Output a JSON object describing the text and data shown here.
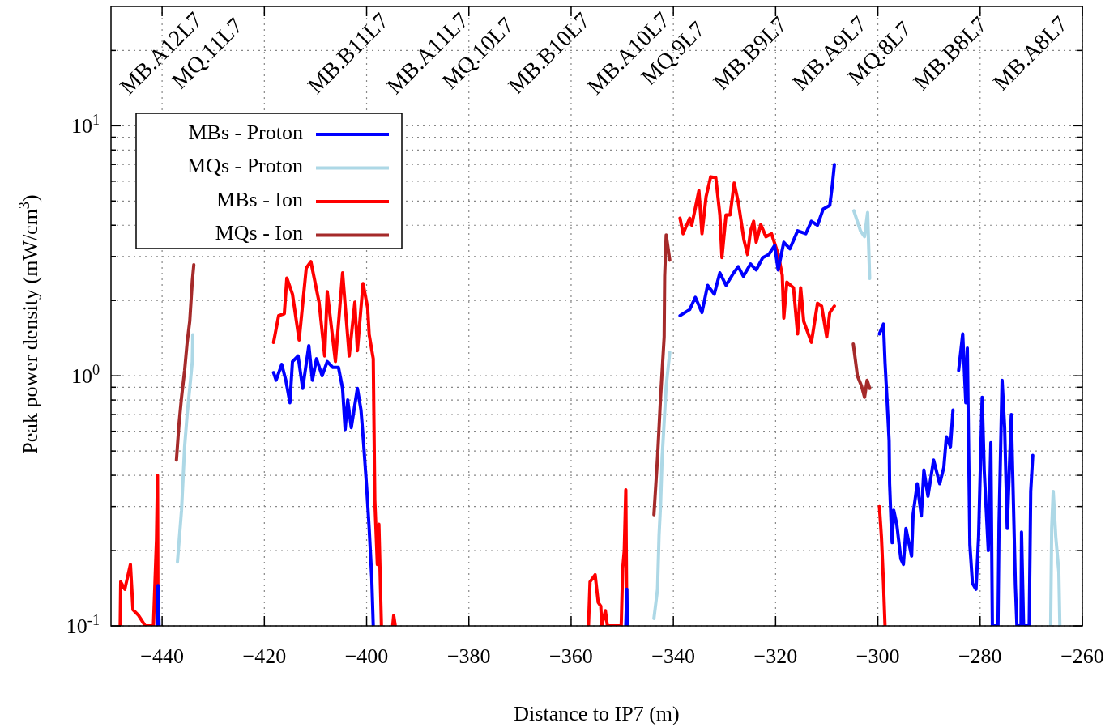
{
  "chart_data": {
    "type": "line",
    "xlabel": "Distance to IP7 (m)",
    "ylabel": "Peak power density (mW/cm$^{3}$)",
    "log": "y",
    "grid": true,
    "legend": "top left",
    "xlim": [
      -450,
      -260
    ],
    "xticks": [
      -440,
      -420,
      -400,
      -380,
      -360,
      -340,
      -320,
      -300,
      -280,
      -260
    ],
    "ylim": [
      0.1,
      30
    ],
    "yticks": [
      {
        "value": 0.1,
        "label": "10$^{-1}$"
      },
      {
        "value": 0.2,
        "label": null
      },
      {
        "value": 0.3,
        "label": null
      },
      {
        "value": 0.4,
        "label": null
      },
      {
        "value": 0.5,
        "label": null
      },
      {
        "value": 0.6,
        "label": null
      },
      {
        "value": 0.7,
        "label": null
      },
      {
        "value": 0.8,
        "label": null
      },
      {
        "value": 0.9,
        "label": null
      },
      {
        "value": 1,
        "label": "10$^{0}$"
      },
      {
        "value": 2,
        "label": null
      },
      {
        "value": 3,
        "label": null
      },
      {
        "value": 4,
        "label": null
      },
      {
        "value": 5,
        "label": null
      },
      {
        "value": 6,
        "label": null
      },
      {
        "value": 7,
        "label": null
      },
      {
        "value": 8,
        "label": null
      },
      {
        "value": 9,
        "label": null
      },
      {
        "value": 10,
        "label": "10$^{1}$"
      },
      {
        "value": 20,
        "label": null
      }
    ],
    "annotations": [
      "MB.A12L7",
      "MQ.11L7",
      "MB.B11L7",
      "MB.A11L7",
      "MQ.10L7",
      "MB.B10L7",
      "MB.A10L7",
      "MQ.9L7",
      "MB.B9L7",
      "MB.A9L7",
      "MQ.8L7",
      "MB.B8L7",
      "MB.A8L7"
    ],
    "series": [
      {
        "name": "MBs - Proton",
        "color": "#0000ff",
        "x": [
          -440.9,
          -440.8,
          -440.6,
          -430,
          -418.2,
          -417.7,
          -416.6,
          -415.8,
          -415.0,
          -414.5,
          -413.4,
          -412.5,
          -411.3,
          -410.6,
          -409.8,
          -408.7,
          -407.7,
          -406.6,
          -405.5,
          -404.7,
          -404.2,
          -403.7,
          -403.0,
          -401.8,
          -401.1,
          -400.6,
          -400.0,
          -399.5,
          -399.0,
          -398.7,
          -380,
          -349.3,
          -349.1,
          -349.0,
          -345,
          -338.7,
          -336.8,
          -335.7,
          -334.4,
          -333.3,
          -332.0,
          -330.9,
          -329.7,
          -328.2,
          -327.3,
          -326.3,
          -324.9,
          -323.8,
          -322.5,
          -321.3,
          -320.2,
          -319.5,
          -318.4,
          -317.2,
          -315.7,
          -314.1,
          -313.0,
          -311.8,
          -310.7,
          -309.4,
          -308.9,
          -308.5,
          -305,
          -299.7,
          -298.9,
          -298.6,
          -298.2,
          -297.8,
          -297.7,
          -297.4,
          -297.2,
          -296.9,
          -296.3,
          -295.5,
          -295.0,
          -294.5,
          -293.4,
          -293.1,
          -292.3,
          -291.5,
          -291.0,
          -290.2,
          -289.1,
          -287.9,
          -287.1,
          -286.6,
          -285.8,
          -285.3,
          -284.8,
          -284.2,
          -283.4,
          -282.8,
          -282.5,
          -282.0,
          -281.5,
          -280.8,
          -280.3,
          -279.6,
          -279.2,
          -278.4,
          -277.9,
          -277.6,
          -276.5,
          -276.3,
          -275.7,
          -275.2,
          -274.7,
          -273.9,
          -273.1,
          -272.8,
          -272.0,
          -271.9,
          -271.5,
          -270.4,
          -270.1,
          -269.7
        ],
        "values": [
          0.1,
          0.145,
          0.1,
          null,
          1.03,
          0.96,
          1.11,
          0.96,
          0.78,
          1.14,
          1.2,
          0.89,
          1.32,
          0.96,
          1.17,
          1.0,
          1.14,
          1.08,
          1.08,
          0.89,
          0.61,
          0.8,
          0.62,
          0.89,
          0.73,
          0.54,
          0.36,
          0.245,
          0.156,
          0.1,
          null,
          0.1,
          0.14,
          0.1,
          null,
          1.74,
          1.84,
          2.06,
          1.79,
          2.3,
          2.12,
          2.58,
          2.3,
          2.58,
          2.73,
          2.5,
          2.8,
          2.65,
          2.97,
          3.06,
          3.32,
          2.65,
          3.42,
          3.22,
          3.8,
          3.7,
          4.15,
          4.0,
          4.64,
          4.8,
          5.8,
          7.0,
          null,
          1.47,
          1.61,
          1.13,
          0.8,
          0.55,
          0.37,
          0.255,
          0.215,
          0.29,
          0.255,
          0.185,
          0.176,
          0.245,
          0.19,
          0.28,
          0.37,
          0.275,
          0.42,
          0.33,
          0.46,
          0.37,
          0.43,
          0.57,
          0.52,
          0.73,
          null,
          1.05,
          1.47,
          0.78,
          1.29,
          0.21,
          0.148,
          0.14,
          0.227,
          0.82,
          0.42,
          0.2,
          0.54,
          0.1,
          0.1,
          0.255,
          0.96,
          0.62,
          0.245,
          0.7,
          0.145,
          0.1,
          0.1,
          0.237,
          0.1,
          0.1,
          0.345,
          0.48
        ]
      },
      {
        "name": "MQs - Proton",
        "color": "#add8e6",
        "x": [
          -437.0,
          -436.2,
          -435.6,
          -435.1,
          -434.6,
          -434.1,
          -434.0,
          -380,
          -343.8,
          -343.1,
          -342.8,
          -342.5,
          -342.2,
          -341.7,
          -341.4,
          -340.7,
          -320,
          -304.7,
          -303.4,
          -302.6,
          -302.0,
          -301.6,
          -280,
          -266.2,
          -266.0,
          -265.7,
          -265.2,
          -264.6,
          -264.4
        ],
        "values": [
          0.18,
          0.29,
          0.52,
          0.7,
          0.89,
          1.14,
          1.46,
          null,
          0.107,
          0.14,
          0.23,
          0.305,
          0.47,
          0.71,
          0.91,
          1.24,
          null,
          4.57,
          3.8,
          3.6,
          4.5,
          2.45,
          null,
          0.1,
          0.245,
          0.345,
          0.227,
          0.164,
          0.1
        ]
      },
      {
        "name": "MBs - Ion",
        "color": "#ff0000",
        "x": [
          -448.2,
          -448.1,
          -447.3,
          -446.2,
          -445.7,
          -444.6,
          -443.3,
          -441.7,
          -441.4,
          -441.1,
          -440.9,
          -440.8,
          -430,
          -418.2,
          -417.2,
          -416.1,
          -415.6,
          -414.5,
          -413.2,
          -411.8,
          -410.9,
          -409.3,
          -408.2,
          -407.7,
          -406.1,
          -404.7,
          -403.4,
          -402.3,
          -401.8,
          -400.7,
          -399.8,
          -399.5,
          -398.7,
          -398.4,
          -397.9,
          -397.6,
          -397.1,
          -396,
          -394.9,
          -394.7,
          -394.4,
          -380,
          -356.6,
          -356.3,
          -355.3,
          -354.7,
          -354.2,
          -354.0,
          -353.3,
          -352.9,
          -350.2,
          -349.9,
          -349.6,
          -349.3,
          -349.1,
          -345,
          -338.7,
          -338.1,
          -336.8,
          -336.4,
          -335.0,
          -334.4,
          -333.6,
          -332.7,
          -331.7,
          -330.9,
          -330.5,
          -329.7,
          -328.9,
          -328.1,
          -327.3,
          -326.2,
          -325.5,
          -324.9,
          -324.3,
          -323.8,
          -322.9,
          -321.9,
          -320.8,
          -319.5,
          -318.7,
          -318.4,
          -317.8,
          -316.5,
          -315.7,
          -315.1,
          -314.5,
          -313.0,
          -311.8,
          -311.0,
          -310.0,
          -309.4,
          -308.5,
          -305,
          -299.7,
          -299.3,
          -298.9,
          -298.6
        ],
        "values": [
          0.1,
          0.15,
          0.14,
          0.176,
          0.116,
          0.11,
          0.1,
          0.1,
          0.148,
          0.22,
          0.4,
          0.1,
          null,
          1.36,
          1.74,
          1.77,
          2.46,
          2.12,
          1.39,
          2.7,
          2.86,
          1.97,
          1.2,
          2.17,
          1.14,
          2.58,
          1.2,
          1.97,
          1.26,
          2.34,
          1.87,
          1.46,
          1.17,
          0.32,
          0.176,
          0.255,
          0.1,
          null,
          0.1,
          0.11,
          0.1,
          null,
          0.1,
          0.15,
          0.16,
          0.124,
          0.12,
          0.1,
          0.115,
          0.1,
          0.1,
          0.17,
          0.2,
          0.35,
          0.1,
          null,
          4.27,
          3.7,
          4.27,
          4.0,
          5.5,
          3.7,
          5.2,
          6.25,
          6.2,
          4.4,
          2.97,
          4.4,
          4.4,
          5.9,
          4.94,
          3.5,
          3.06,
          3.8,
          4.15,
          3.42,
          4.03,
          3.6,
          3.7,
          3.06,
          2.52,
          1.7,
          2.37,
          2.25,
          1.47,
          2.25,
          1.65,
          1.36,
          1.95,
          1.9,
          1.43,
          1.79,
          1.9,
          null,
          0.3,
          0.227,
          0.148,
          0.1
        ]
      },
      {
        "name": "MQs - Ion",
        "color": "#a52a2a",
        "x": [
          -437.2,
          -436.7,
          -436.2,
          -435.6,
          -435.1,
          -434.6,
          -434.1,
          -433.8,
          -380,
          -343.8,
          -343.1,
          -342.5,
          -341.8,
          -341.7,
          -341.4,
          -340.7,
          -320,
          -304.8,
          -304.5,
          -304.0,
          -303.2,
          -302.6,
          -302.1,
          -301.6
        ],
        "values": [
          0.46,
          0.64,
          0.82,
          1.05,
          1.36,
          1.65,
          2.39,
          2.78,
          null,
          0.278,
          0.47,
          0.82,
          1.43,
          2.5,
          3.66,
          2.9,
          null,
          1.34,
          1.2,
          1.0,
          0.91,
          0.82,
          0.96,
          0.89
        ]
      }
    ]
  }
}
